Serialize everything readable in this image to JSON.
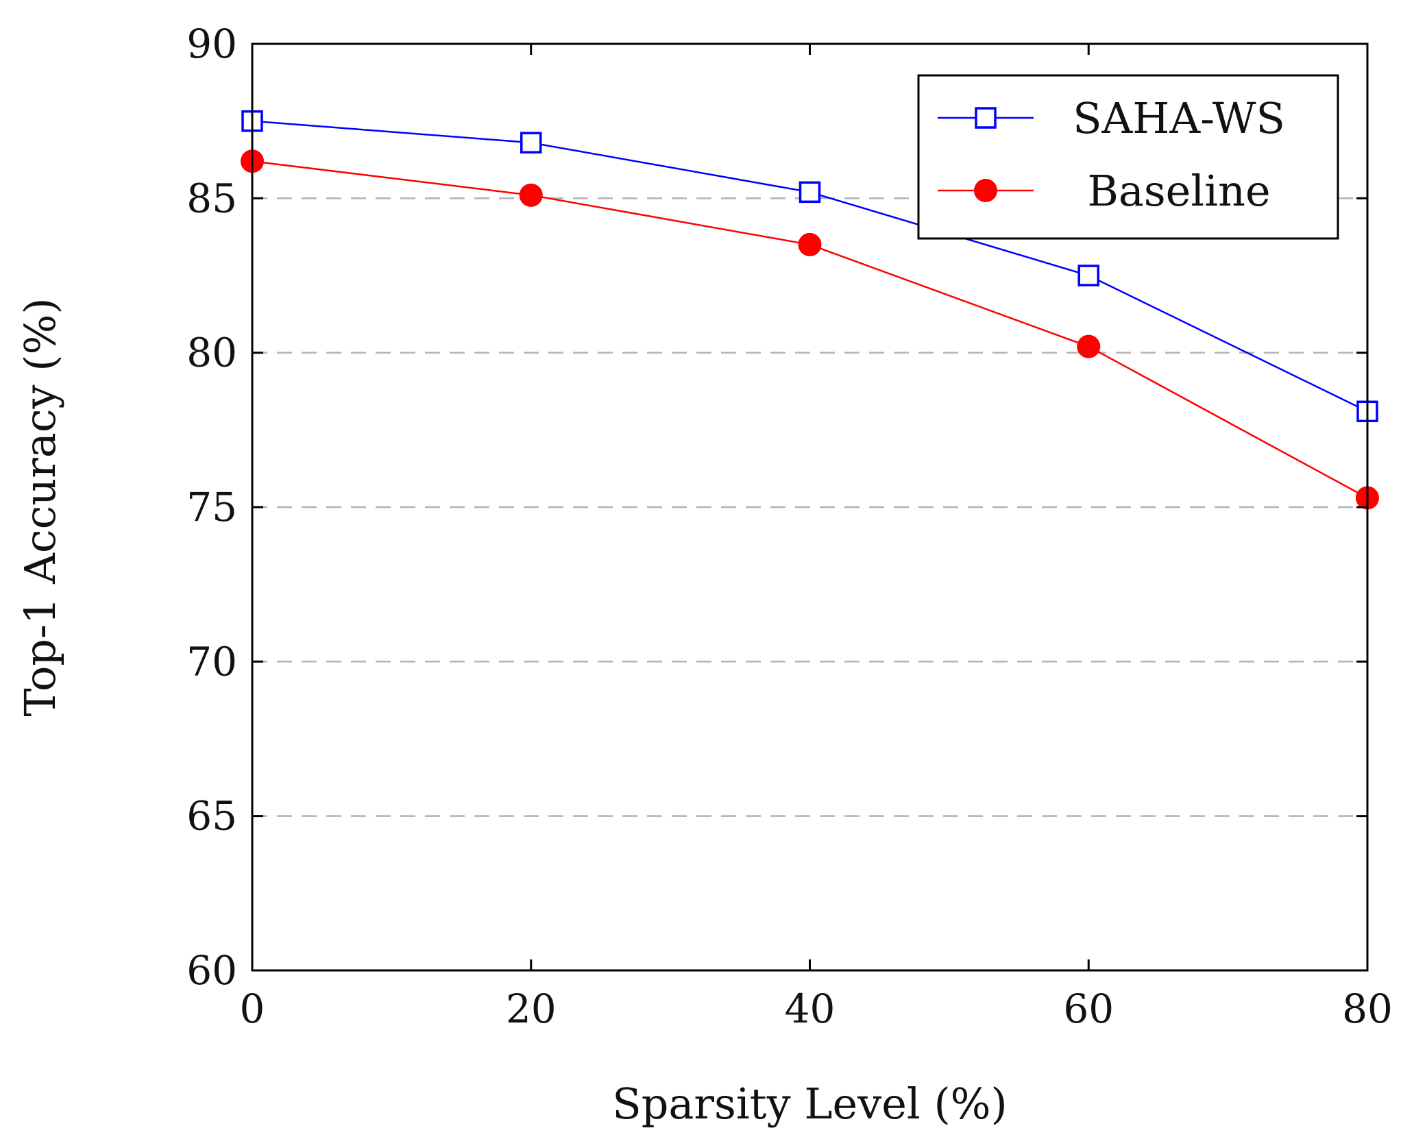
{
  "chart_data": {
    "type": "line",
    "title": "",
    "xlabel": "Sparsity Level (%)",
    "ylabel": "Top-1 Accuracy (%)",
    "x": [
      0,
      20,
      40,
      60,
      80
    ],
    "xlim": [
      0,
      80
    ],
    "ylim": [
      60,
      90
    ],
    "xticks": [
      0,
      20,
      40,
      60,
      80
    ],
    "yticks": [
      60,
      65,
      70,
      75,
      80,
      85,
      90
    ],
    "grid": "horizontal dashed",
    "legend_position": "top-right",
    "series": [
      {
        "name": "SAHA-WS",
        "values": [
          87.5,
          86.8,
          85.2,
          82.5,
          78.1
        ],
        "color": "#0000ff",
        "marker": "open-square"
      },
      {
        "name": "Baseline",
        "values": [
          86.2,
          85.1,
          83.5,
          80.2,
          75.3
        ],
        "color": "#ff0000",
        "marker": "filled-circle"
      }
    ]
  },
  "colors": {
    "axis": "#000000",
    "grid": "#b3b3b3"
  }
}
